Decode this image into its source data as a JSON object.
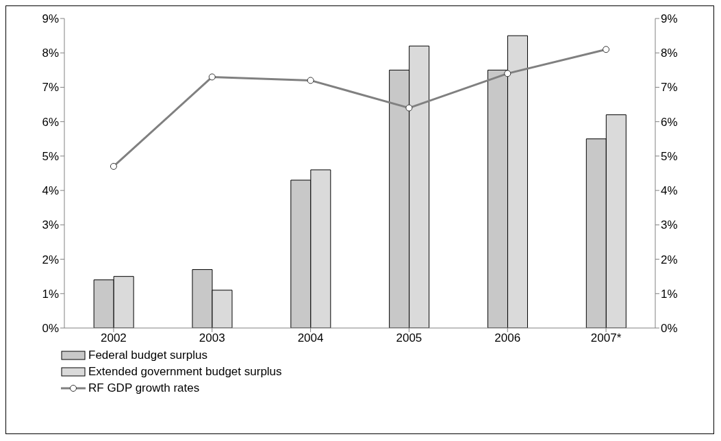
{
  "chart_data": {
    "type": "bar",
    "categories": [
      "2002",
      "2003",
      "2004",
      "2005",
      "2006",
      "2007*"
    ],
    "series": [
      {
        "name": "Federal budget surplus",
        "color": "#c8c8c8",
        "values": [
          1.4,
          1.7,
          4.3,
          7.5,
          7.5,
          5.5
        ]
      },
      {
        "name": "Extended government budget surplus",
        "color": "#dadada",
        "values": [
          1.5,
          1.1,
          4.6,
          8.2,
          8.5,
          6.2
        ]
      },
      {
        "name": "RF GDP growth rates",
        "type": "line",
        "color": "#808080",
        "marker": "circle",
        "line_style": "solid",
        "values": [
          4.7,
          7.3,
          7.2,
          6.4,
          7.4,
          8.1
        ]
      }
    ],
    "ylim": [
      0,
      9
    ],
    "yticks": [
      {
        "value": 0,
        "label": "0%"
      },
      {
        "value": 1,
        "label": "1%"
      },
      {
        "value": 2,
        "label": "2%"
      },
      {
        "value": 3,
        "label": "3%"
      },
      {
        "value": 4,
        "label": "4%"
      },
      {
        "value": 5,
        "label": "5%"
      },
      {
        "value": 6,
        "label": "6%"
      },
      {
        "value": 7,
        "label": "7%"
      },
      {
        "value": 8,
        "label": "8%"
      },
      {
        "value": 9,
        "label": "9%"
      }
    ],
    "y2lim": [
      0,
      9
    ],
    "y2ticks": [
      {
        "value": 0,
        "label": "0%"
      },
      {
        "value": 1,
        "label": "1%"
      },
      {
        "value": 2,
        "label": "2%"
      },
      {
        "value": 3,
        "label": "3%"
      },
      {
        "value": 4,
        "label": "4%"
      },
      {
        "value": 5,
        "label": "5%"
      },
      {
        "value": 6,
        "label": "6%"
      },
      {
        "value": 7,
        "label": "7%"
      },
      {
        "value": 8,
        "label": "8%"
      },
      {
        "value": 9,
        "label": "9%"
      }
    ],
    "grid": false,
    "legend": "bottom"
  }
}
